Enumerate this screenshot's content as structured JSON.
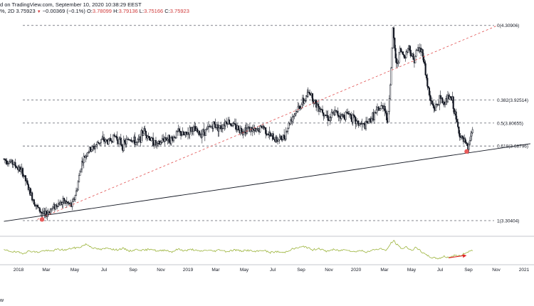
{
  "header": {
    "line1": "d on TradingView.com, September 10, 2020 10:38:29 EEST",
    "symbol_tail": "%, 2D",
    "last": "3.75923",
    "change": "−0.00369 (−0.1%)",
    "open_label": "O:",
    "open": "3.78099",
    "high_label": "H:",
    "high": "3.79136",
    "low_label": "L:",
    "low": "3.75166",
    "close_label": "C:",
    "close": "3.75923"
  },
  "footer": {
    "mark": "w"
  },
  "colors": {
    "candle": "#131722",
    "fib_line": "#5d606b",
    "support_line": "#131722",
    "channel_line": "#e04e4e",
    "oscillator": "#9cb43c",
    "arrow": "#e02828",
    "marker": "#e85b5b",
    "axis_text": "#131722"
  },
  "chart_data": {
    "type": "candlestick",
    "x_ticks": [
      "2018",
      "Mar",
      "May",
      "Jul",
      "Sep",
      "Nov",
      "2019",
      "Mar",
      "May",
      "Jul",
      "Sep",
      "Nov",
      "2020",
      "Mar",
      "May",
      "Jul",
      "Sep",
      "Nov",
      "2021"
    ],
    "x_range": [
      "2017-12",
      "2021-01"
    ],
    "fib_levels": [
      {
        "ratio": "0",
        "price": 4.30906,
        "label": "0(4.30906)"
      },
      {
        "ratio": "0.382",
        "price": 3.92514,
        "label": "0.382(3.92514)"
      },
      {
        "ratio": "0.5",
        "price": 3.80655,
        "label": "0.5(3.80655)"
      },
      {
        "ratio": "0.618",
        "price": 3.68796,
        "label": "0.618(3.68796)"
      },
      {
        "ratio": "1",
        "price": 3.30404,
        "label": "1(3.30404)"
      }
    ],
    "y_range": [
      3.26,
      4.33
    ],
    "price_path": [
      [
        "2017-12-01",
        3.62
      ],
      [
        "2017-12-20",
        3.6
      ],
      [
        "2018-01-10",
        3.55
      ],
      [
        "2018-01-25",
        3.45
      ],
      [
        "2018-02-10",
        3.37
      ],
      [
        "2018-02-25",
        3.33
      ],
      [
        "2018-03-10",
        3.36
      ],
      [
        "2018-03-25",
        3.39
      ],
      [
        "2018-04-10",
        3.4
      ],
      [
        "2018-04-25",
        3.38
      ],
      [
        "2018-05-05",
        3.46
      ],
      [
        "2018-05-15",
        3.6
      ],
      [
        "2018-05-28",
        3.66
      ],
      [
        "2018-06-10",
        3.68
      ],
      [
        "2018-06-25",
        3.72
      ],
      [
        "2018-07-10",
        3.71
      ],
      [
        "2018-07-25",
        3.74
      ],
      [
        "2018-08-10",
        3.69
      ],
      [
        "2018-08-25",
        3.73
      ],
      [
        "2018-09-10",
        3.7
      ],
      [
        "2018-09-25",
        3.77
      ],
      [
        "2018-10-10",
        3.72
      ],
      [
        "2018-10-25",
        3.69
      ],
      [
        "2018-11-10",
        3.73
      ],
      [
        "2018-11-25",
        3.72
      ],
      [
        "2018-12-10",
        3.76
      ],
      [
        "2018-12-25",
        3.74
      ],
      [
        "2019-01-10",
        3.78
      ],
      [
        "2019-01-25",
        3.75
      ],
      [
        "2019-02-10",
        3.77
      ],
      [
        "2019-02-25",
        3.8
      ],
      [
        "2019-03-10",
        3.78
      ],
      [
        "2019-03-25",
        3.82
      ],
      [
        "2019-04-10",
        3.79
      ],
      [
        "2019-04-25",
        3.77
      ],
      [
        "2019-05-10",
        3.78
      ],
      [
        "2019-05-25",
        3.76
      ],
      [
        "2019-06-10",
        3.79
      ],
      [
        "2019-06-25",
        3.74
      ],
      [
        "2019-07-10",
        3.72
      ],
      [
        "2019-07-25",
        3.73
      ],
      [
        "2019-08-10",
        3.83
      ],
      [
        "2019-08-25",
        3.88
      ],
      [
        "2019-09-10",
        3.93
      ],
      [
        "2019-09-20",
        3.97
      ],
      [
        "2019-10-01",
        3.91
      ],
      [
        "2019-10-15",
        3.88
      ],
      [
        "2019-11-01",
        3.83
      ],
      [
        "2019-11-15",
        3.86
      ],
      [
        "2019-12-01",
        3.84
      ],
      [
        "2019-12-15",
        3.86
      ],
      [
        "2020-01-01",
        3.81
      ],
      [
        "2020-01-20",
        3.79
      ],
      [
        "2020-02-05",
        3.84
      ],
      [
        "2020-02-20",
        3.88
      ],
      [
        "2020-03-01",
        3.9
      ],
      [
        "2020-03-08",
        3.8
      ],
      [
        "2020-03-15",
        4.05
      ],
      [
        "2020-03-20",
        4.28
      ],
      [
        "2020-03-28",
        4.1
      ],
      [
        "2020-04-05",
        4.18
      ],
      [
        "2020-04-15",
        4.15
      ],
      [
        "2020-04-25",
        4.2
      ],
      [
        "2020-05-05",
        4.13
      ],
      [
        "2020-05-15",
        4.19
      ],
      [
        "2020-05-25",
        4.17
      ],
      [
        "2020-06-01",
        4.05
      ],
      [
        "2020-06-10",
        3.92
      ],
      [
        "2020-06-20",
        3.88
      ],
      [
        "2020-07-01",
        3.93
      ],
      [
        "2020-07-10",
        3.91
      ],
      [
        "2020-07-20",
        3.94
      ],
      [
        "2020-07-28",
        3.92
      ],
      [
        "2020-08-05",
        3.82
      ],
      [
        "2020-08-15",
        3.73
      ],
      [
        "2020-08-25",
        3.7
      ],
      [
        "2020-09-01",
        3.67
      ],
      [
        "2020-09-05",
        3.74
      ],
      [
        "2020-09-10",
        3.76
      ]
    ],
    "support_line": [
      [
        "2017-12-01",
        3.3
      ],
      [
        "2021-01-15",
        3.7
      ]
    ],
    "channel_line": [
      [
        "2018-02-10",
        3.31
      ],
      [
        "2020-11-05",
        4.31
      ]
    ],
    "markers": [
      [
        "2018-02-20",
        3.31
      ],
      [
        "2020-08-28",
        3.66
      ]
    ],
    "oscillator": {
      "y_range": [
        0,
        100
      ],
      "values": [
        [
          "2017-12-01",
          52
        ],
        [
          "2017-12-20",
          45
        ],
        [
          "2018-01-10",
          38
        ],
        [
          "2018-01-25",
          48
        ],
        [
          "2018-02-10",
          42
        ],
        [
          "2018-02-25",
          50
        ],
        [
          "2018-03-10",
          47
        ],
        [
          "2018-03-25",
          55
        ],
        [
          "2018-04-10",
          52
        ],
        [
          "2018-04-25",
          60
        ],
        [
          "2018-05-10",
          63
        ],
        [
          "2018-05-25",
          78
        ],
        [
          "2018-06-10",
          60
        ],
        [
          "2018-06-25",
          54
        ],
        [
          "2018-07-10",
          62
        ],
        [
          "2018-07-25",
          52
        ],
        [
          "2018-08-10",
          59
        ],
        [
          "2018-08-25",
          48
        ],
        [
          "2018-09-10",
          55
        ],
        [
          "2018-09-25",
          50
        ],
        [
          "2018-10-10",
          58
        ],
        [
          "2018-10-25",
          46
        ],
        [
          "2018-11-10",
          53
        ],
        [
          "2018-11-25",
          44
        ],
        [
          "2018-12-10",
          56
        ],
        [
          "2018-12-25",
          49
        ],
        [
          "2019-01-10",
          55
        ],
        [
          "2019-01-25",
          46
        ],
        [
          "2019-02-10",
          52
        ],
        [
          "2019-02-25",
          47
        ],
        [
          "2019-03-10",
          54
        ],
        [
          "2019-03-25",
          45
        ],
        [
          "2019-04-10",
          53
        ],
        [
          "2019-04-25",
          48
        ],
        [
          "2019-05-10",
          51
        ],
        [
          "2019-05-25",
          44
        ],
        [
          "2019-06-10",
          52
        ],
        [
          "2019-06-25",
          41
        ],
        [
          "2019-07-10",
          45
        ],
        [
          "2019-07-25",
          40
        ],
        [
          "2019-08-10",
          55
        ],
        [
          "2019-08-25",
          62
        ],
        [
          "2019-09-10",
          68
        ],
        [
          "2019-09-25",
          52
        ],
        [
          "2019-10-10",
          60
        ],
        [
          "2019-10-25",
          46
        ],
        [
          "2019-11-10",
          54
        ],
        [
          "2019-11-25",
          49
        ],
        [
          "2019-12-10",
          56
        ],
        [
          "2019-12-25",
          44
        ],
        [
          "2020-01-10",
          50
        ],
        [
          "2020-01-25",
          43
        ],
        [
          "2020-02-10",
          55
        ],
        [
          "2020-02-25",
          58
        ],
        [
          "2020-03-05",
          48
        ],
        [
          "2020-03-15",
          82
        ],
        [
          "2020-03-22",
          92
        ],
        [
          "2020-04-01",
          70
        ],
        [
          "2020-04-10",
          58
        ],
        [
          "2020-04-20",
          66
        ],
        [
          "2020-05-01",
          50
        ],
        [
          "2020-05-10",
          63
        ],
        [
          "2020-05-20",
          48
        ],
        [
          "2020-06-01",
          30
        ],
        [
          "2020-06-15",
          18
        ],
        [
          "2020-06-28",
          15
        ],
        [
          "2020-07-10",
          24
        ],
        [
          "2020-07-20",
          20
        ],
        [
          "2020-08-01",
          28
        ],
        [
          "2020-08-15",
          26
        ],
        [
          "2020-08-25",
          40
        ],
        [
          "2020-09-01",
          45
        ],
        [
          "2020-09-10",
          52
        ]
      ]
    },
    "annotation_arrow": {
      "from": [
        "2020-07-20",
        18
      ],
      "to": [
        "2020-08-28",
        28
      ]
    }
  }
}
